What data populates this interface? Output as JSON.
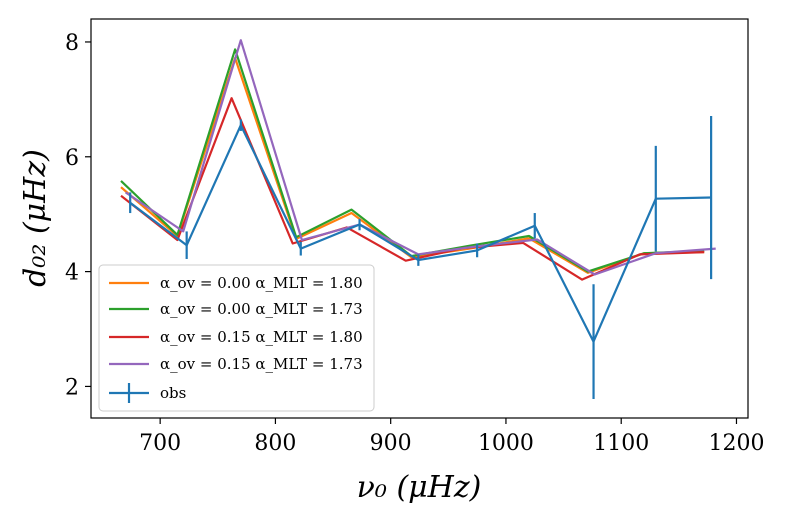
{
  "chart_data": {
    "type": "line",
    "xlabel": "ν₀ (μHz)",
    "ylabel": "d₀₂ (μHz)",
    "xlim": [
      640,
      1210
    ],
    "ylim": [
      1.45,
      8.4
    ],
    "xticks": [
      700,
      800,
      900,
      1000,
      1100,
      1200
    ],
    "yticks": [
      2,
      4,
      6,
      8
    ],
    "xtick_labels": [
      "700",
      "800",
      "900",
      "1000",
      "1100",
      "1200"
    ],
    "ytick_labels": [
      "2",
      "4",
      "6",
      "8"
    ],
    "legend_position": "lower-left",
    "series": [
      {
        "name": "α_ov = 0.00 α_MLT = 1.80",
        "color": "#ff7f0e",
        "x": [
          666,
          715,
          765,
          818,
          866,
          918,
          968,
          1020,
          1071,
          1120,
          1172
        ],
        "y": [
          5.47,
          4.62,
          7.72,
          4.57,
          5.02,
          4.25,
          4.4,
          4.58,
          3.98,
          4.32,
          4.34
        ]
      },
      {
        "name": "α_ov = 0.00 α_MLT = 1.73",
        "color": "#2ca02c",
        "x": [
          666,
          715,
          765,
          818,
          866,
          918,
          968,
          1020,
          1071,
          1120,
          1172
        ],
        "y": [
          5.58,
          4.64,
          7.87,
          4.6,
          5.08,
          4.27,
          4.45,
          4.62,
          4.0,
          4.32,
          4.36
        ]
      },
      {
        "name": "α_ov = 0.15 α_MLT = 1.80",
        "color": "#d62728",
        "x": [
          666,
          715,
          762,
          815,
          862,
          913,
          963,
          1015,
          1066,
          1116,
          1172
        ],
        "y": [
          5.32,
          4.55,
          7.02,
          4.49,
          4.77,
          4.19,
          4.41,
          4.5,
          3.86,
          4.3,
          4.34
        ]
      },
      {
        "name": "α_ov = 0.15 α_MLT = 1.73",
        "color": "#9467bd",
        "x": [
          670,
          720,
          770,
          823,
          873,
          924,
          975,
          1027,
          1077,
          1130,
          1182
        ],
        "y": [
          5.38,
          4.7,
          8.03,
          4.55,
          4.82,
          4.3,
          4.44,
          4.56,
          3.95,
          4.32,
          4.4
        ]
      }
    ],
    "observations": {
      "name": "obs",
      "color": "#1f77b4",
      "x": [
        674,
        723,
        770,
        822,
        873,
        924,
        975,
        1025,
        1076,
        1130,
        1178
      ],
      "y": [
        5.2,
        4.46,
        6.55,
        4.4,
        4.82,
        4.2,
        4.37,
        4.8,
        2.78,
        5.27,
        5.29
      ],
      "yerr": [
        0.18,
        0.24,
        0.1,
        0.12,
        0.1,
        0.1,
        0.12,
        0.22,
        1.0,
        0.92,
        1.42
      ]
    },
    "legend": {
      "entries": [
        "α_ov = 0.00 α_MLT = 1.80",
        "α_ov = 0.00 α_MLT = 1.73",
        "α_ov = 0.15 α_MLT = 1.80",
        "α_ov = 0.15 α_MLT = 1.73",
        "obs"
      ]
    }
  }
}
